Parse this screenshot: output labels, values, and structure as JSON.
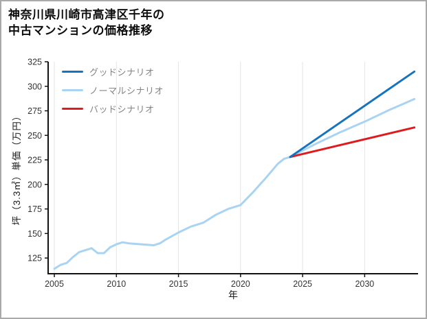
{
  "header": {
    "title_line1": "神奈川県川崎市高津区千年の",
    "title_line2": "中古マンションの価格推移"
  },
  "chart_data": {
    "type": "line",
    "title": "神奈川県川崎市高津区千年の中古マンションの価格推移",
    "xlabel": "年",
    "ylabel": "坪（3.3㎡）単価（万円）",
    "xlim": [
      2004.5,
      2034.3
    ],
    "ylim": [
      109,
      325
    ],
    "xticks": [
      2005,
      2010,
      2015,
      2020,
      2025,
      2030
    ],
    "yticks": [
      125,
      150,
      175,
      200,
      225,
      250,
      275,
      300,
      325
    ],
    "grid": "vertical-only",
    "legend_position": "upper-left-inside",
    "colors": {
      "axis": "#111111",
      "grid": "#e4e4e4",
      "tick_text": "#333333"
    },
    "series": [
      {
        "id": "good",
        "name": "グッドシナリオ",
        "color": "#1673bd",
        "width": 3,
        "x": [
          2024,
          2034
        ],
        "values": [
          228,
          315
        ]
      },
      {
        "id": "normal",
        "name": "ノーマルシナリオ",
        "color": "#a9d3f2",
        "width": 3,
        "x": [
          2005,
          2005.5,
          2006,
          2006.5,
          2007,
          2007.5,
          2008,
          2008.5,
          2009,
          2009.5,
          2010,
          2010.5,
          2011,
          2012,
          2013,
          2013.5,
          2014,
          2015,
          2016,
          2017,
          2018,
          2019,
          2020,
          2021,
          2022,
          2023,
          2023.5,
          2024,
          2026,
          2028,
          2030,
          2032,
          2034
        ],
        "values": [
          114,
          118,
          120,
          126,
          131,
          133,
          135,
          130,
          130,
          136,
          139,
          141,
          140,
          139,
          138,
          140,
          144,
          151,
          157,
          161,
          169,
          175,
          179,
          192,
          206,
          221,
          226,
          228,
          241,
          253,
          264,
          276,
          287
        ]
      },
      {
        "id": "bad",
        "name": "バッドシナリオ",
        "color": "#e01b1d",
        "width": 3,
        "x": [
          2024,
          2034
        ],
        "values": [
          228,
          258
        ]
      }
    ],
    "draw_order": [
      1,
      2,
      0
    ]
  }
}
